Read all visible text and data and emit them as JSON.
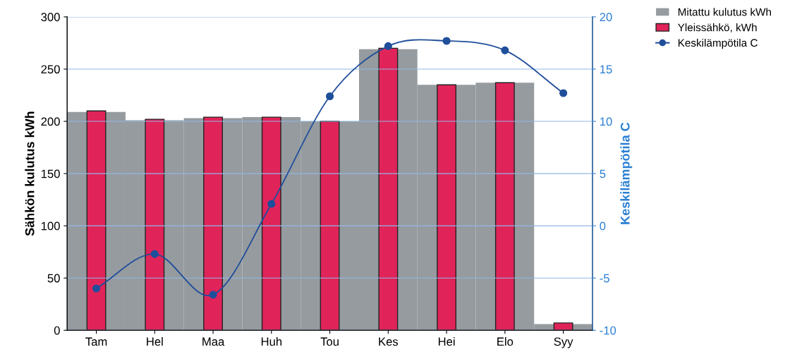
{
  "chart_data": {
    "type": "bar",
    "categories": [
      "Tam",
      "Hel",
      "Maa",
      "Huh",
      "Tou",
      "Kes",
      "Hei",
      "Elo",
      "Syy"
    ],
    "ylabel": "Sähkön kulutus kWh",
    "y2label": "Keskilämpötila C",
    "series": [
      {
        "name": "Mitattu kulutus kWh",
        "color": "#969b9f",
        "values": [
          209,
          201,
          203,
          204,
          200,
          269,
          235,
          237,
          6
        ]
      },
      {
        "name": "Yleissähkö, kWh",
        "color": "#e0245a",
        "values": [
          210,
          202,
          204,
          204,
          200,
          270,
          235,
          237,
          7
        ]
      },
      {
        "name": "Keskilämpötila C",
        "type": "line",
        "axis": "y2",
        "color": "#1f4e9a",
        "marker": "circle",
        "values": [
          -6.0,
          -2.7,
          -6.6,
          2.1,
          12.4,
          17.2,
          17.7,
          16.8,
          12.7
        ]
      }
    ],
    "ylim": [
      0,
      300
    ],
    "yticks": [
      0,
      50,
      100,
      150,
      200,
      250,
      300
    ],
    "y2lim": [
      -10,
      20
    ],
    "y2ticks": [
      -10,
      -5,
      0,
      5,
      10,
      15,
      20
    ],
    "grid": "y",
    "legend": "top right"
  }
}
